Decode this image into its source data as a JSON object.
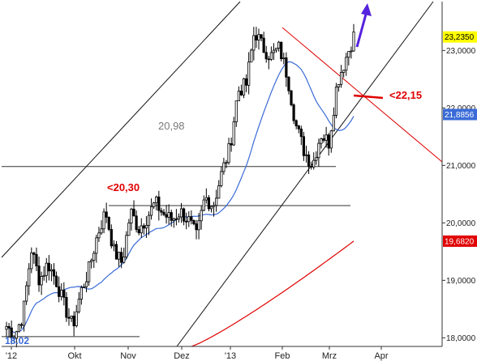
{
  "chart_data": {
    "type": "candlestick",
    "y_ticks": [
      {
        "value": 18.0,
        "label": "18,0000"
      },
      {
        "value": 19.0,
        "label": "19,0000"
      },
      {
        "value": 20.0,
        "label": "20,0000"
      },
      {
        "value": 21.0,
        "label": "21,0000"
      },
      {
        "value": 22.0,
        "label": "22,0000"
      },
      {
        "value": 23.0,
        "label": "23,0000"
      }
    ],
    "x_ticks": [
      "'12",
      "Okt",
      "Nov",
      "Dez",
      "'13",
      "Feb",
      "Mrz",
      "Apr"
    ],
    "ylim": [
      17.85,
      23.85
    ],
    "last_price_tags": [
      {
        "label": "23,2350",
        "value": 23.235,
        "color": "#ffff00",
        "text_color": "#000000"
      },
      {
        "label": "21,8856",
        "value": 21.8856,
        "color": "#3a6bd8",
        "text_color": "#ffffff"
      },
      {
        "label": "19,6820",
        "value": 19.682,
        "color": "#e00000",
        "text_color": "#ffffff"
      }
    ],
    "annotations": [
      {
        "text": "20,98",
        "style": "gray"
      },
      {
        "text": "<20,30",
        "style": "red"
      },
      {
        "text": "<22,15",
        "style": "red"
      },
      {
        "text": "18.02",
        "style": "blue"
      }
    ],
    "horizontal_levels": [
      20.98,
      20.3,
      18.02
    ],
    "series": [
      {
        "kind": "ohlc-candles",
        "anchors": [
          [
            "'12",
            18.2
          ],
          [
            "'12",
            18.05
          ],
          [
            "'12",
            18.4
          ],
          [
            "Okt",
            19.55
          ],
          [
            "Okt",
            19.0
          ],
          [
            "Okt",
            19.3
          ],
          [
            "Okt",
            19.0
          ],
          [
            "Okt",
            18.55
          ],
          [
            "Okt",
            18.2
          ],
          [
            "Nov",
            18.8
          ],
          [
            "Nov",
            19.2
          ],
          [
            "Nov",
            19.8
          ],
          [
            "Nov",
            20.2
          ],
          [
            "Nov",
            19.5
          ],
          [
            "Nov",
            19.3
          ],
          [
            "Nov",
            20.2
          ],
          [
            "Dez",
            19.9
          ],
          [
            "Dez",
            20.1
          ],
          [
            "Dez",
            20.35
          ],
          [
            "Dez",
            20.15
          ],
          [
            "Dez",
            20.05
          ],
          [
            "Dez",
            20.2
          ],
          [
            "'13",
            20.05
          ],
          [
            "'13",
            19.75
          ],
          [
            "'13",
            20.45
          ],
          [
            "'13",
            20.3
          ],
          [
            "'13",
            20.85
          ],
          [
            "'13",
            21.3
          ],
          [
            "Feb",
            22.3
          ],
          [
            "Feb",
            22.4
          ],
          [
            "Feb",
            23.35
          ],
          [
            "Feb",
            23.05
          ],
          [
            "Feb",
            22.9
          ],
          [
            "Feb",
            23.05
          ],
          [
            "Mrz",
            22.55
          ],
          [
            "Mrz",
            21.7
          ],
          [
            "Mrz",
            21.25
          ],
          [
            "Mrz",
            21.0
          ],
          [
            "Mrz",
            21.55
          ],
          [
            "Mrz",
            21.4
          ],
          [
            "Mrz",
            22.45
          ],
          [
            "Mrz",
            22.85
          ],
          [
            "Mrz",
            23.25
          ]
        ]
      },
      {
        "kind": "moving-average-blue",
        "color": "#3a6bd8",
        "last_value": 21.8856
      },
      {
        "kind": "moving-average-red",
        "color": "#e00000",
        "last_value": 19.682
      }
    ],
    "trend_channel": {
      "lower_color": "#111111",
      "upper_color": "#111111",
      "resistance_color": "#e00000"
    }
  }
}
